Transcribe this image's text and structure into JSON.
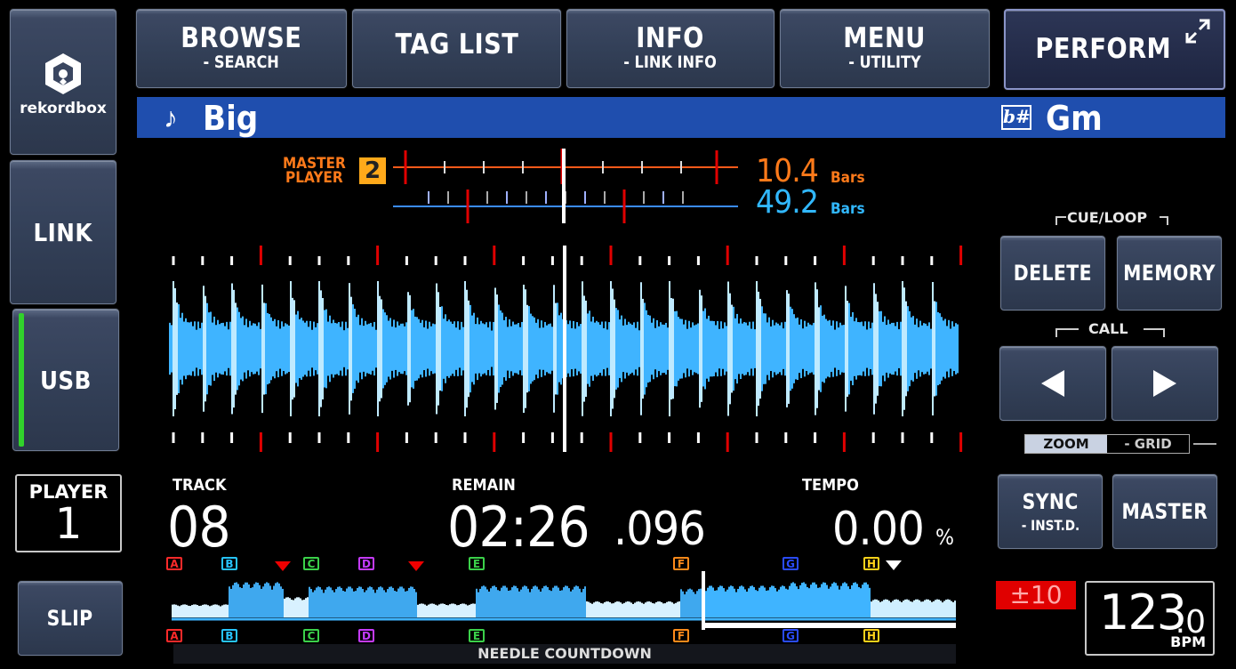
{
  "left_nav": {
    "logo_label": "rekordbox",
    "link_label": "LINK",
    "usb_label": "USB",
    "slip_label": "SLIP"
  },
  "top_nav": {
    "browse": {
      "label": "BROWSE",
      "sub": "- SEARCH"
    },
    "tag_list": {
      "label": "TAG LIST"
    },
    "info": {
      "label": "INFO",
      "sub": "- LINK INFO"
    },
    "menu": {
      "label": "MENU",
      "sub": "- UTILITY"
    },
    "perform": {
      "label": "PERFORM"
    }
  },
  "track_bar": {
    "title": "Big",
    "key": "Gm",
    "key_icon": "b#"
  },
  "beat_sync": {
    "master_label_1": "MASTER",
    "master_label_2": "PLAYER",
    "master_number": "2",
    "master_bars": "10.4",
    "master_bars_unit": "Bars",
    "this_bars": "49.2",
    "this_bars_unit": "Bars",
    "master_color": "#ff7a1a",
    "this_color": "#31b8ff"
  },
  "cue_loop": {
    "group_label": "CUE/LOOP",
    "delete_label": "DELETE",
    "memory_label": "MEMORY",
    "call_label": "CALL",
    "prev_icon": "triangle-left-icon",
    "next_icon": "triangle-right-icon"
  },
  "zoom_grid": {
    "zoom_label": "ZOOM",
    "grid_label": "- GRID",
    "active": "ZOOM"
  },
  "player": {
    "label": "PLAYER",
    "number": "1"
  },
  "info": {
    "track_label": "TRACK",
    "track_value": "08",
    "remain_label": "REMAIN",
    "remain_main": "02:26",
    "remain_ms": ".096",
    "tempo_label": "TEMPO",
    "tempo_value": "0.00",
    "tempo_unit": "%"
  },
  "sync": {
    "sync_label": "SYNC",
    "sync_sub": "- INST.D.",
    "master_label": "MASTER"
  },
  "tempo_range": "±10",
  "bpm": {
    "value": "123",
    "decimal": ".0",
    "unit": "BPM"
  },
  "overview": {
    "needle_label": "NEEDLE COUNTDOWN",
    "hot_cues": [
      {
        "letter": "A",
        "color": "#ff2a2a"
      },
      {
        "letter": "B",
        "color": "#27c4ff"
      },
      {
        "letter": "C",
        "color": "#3bd14a"
      },
      {
        "letter": "D",
        "color": "#c53bff"
      },
      {
        "letter": "E",
        "color": "#3bd14a"
      },
      {
        "letter": "F",
        "color": "#ff8a1a"
      },
      {
        "letter": "G",
        "color": "#2a4cff"
      },
      {
        "letter": "H",
        "color": "#ffd21a"
      }
    ]
  },
  "colors": {
    "accent_blue": "#1f4eae",
    "waveform": "#3fb4ff",
    "beat_red": "#e00000",
    "usb_active": "#31d22b"
  }
}
